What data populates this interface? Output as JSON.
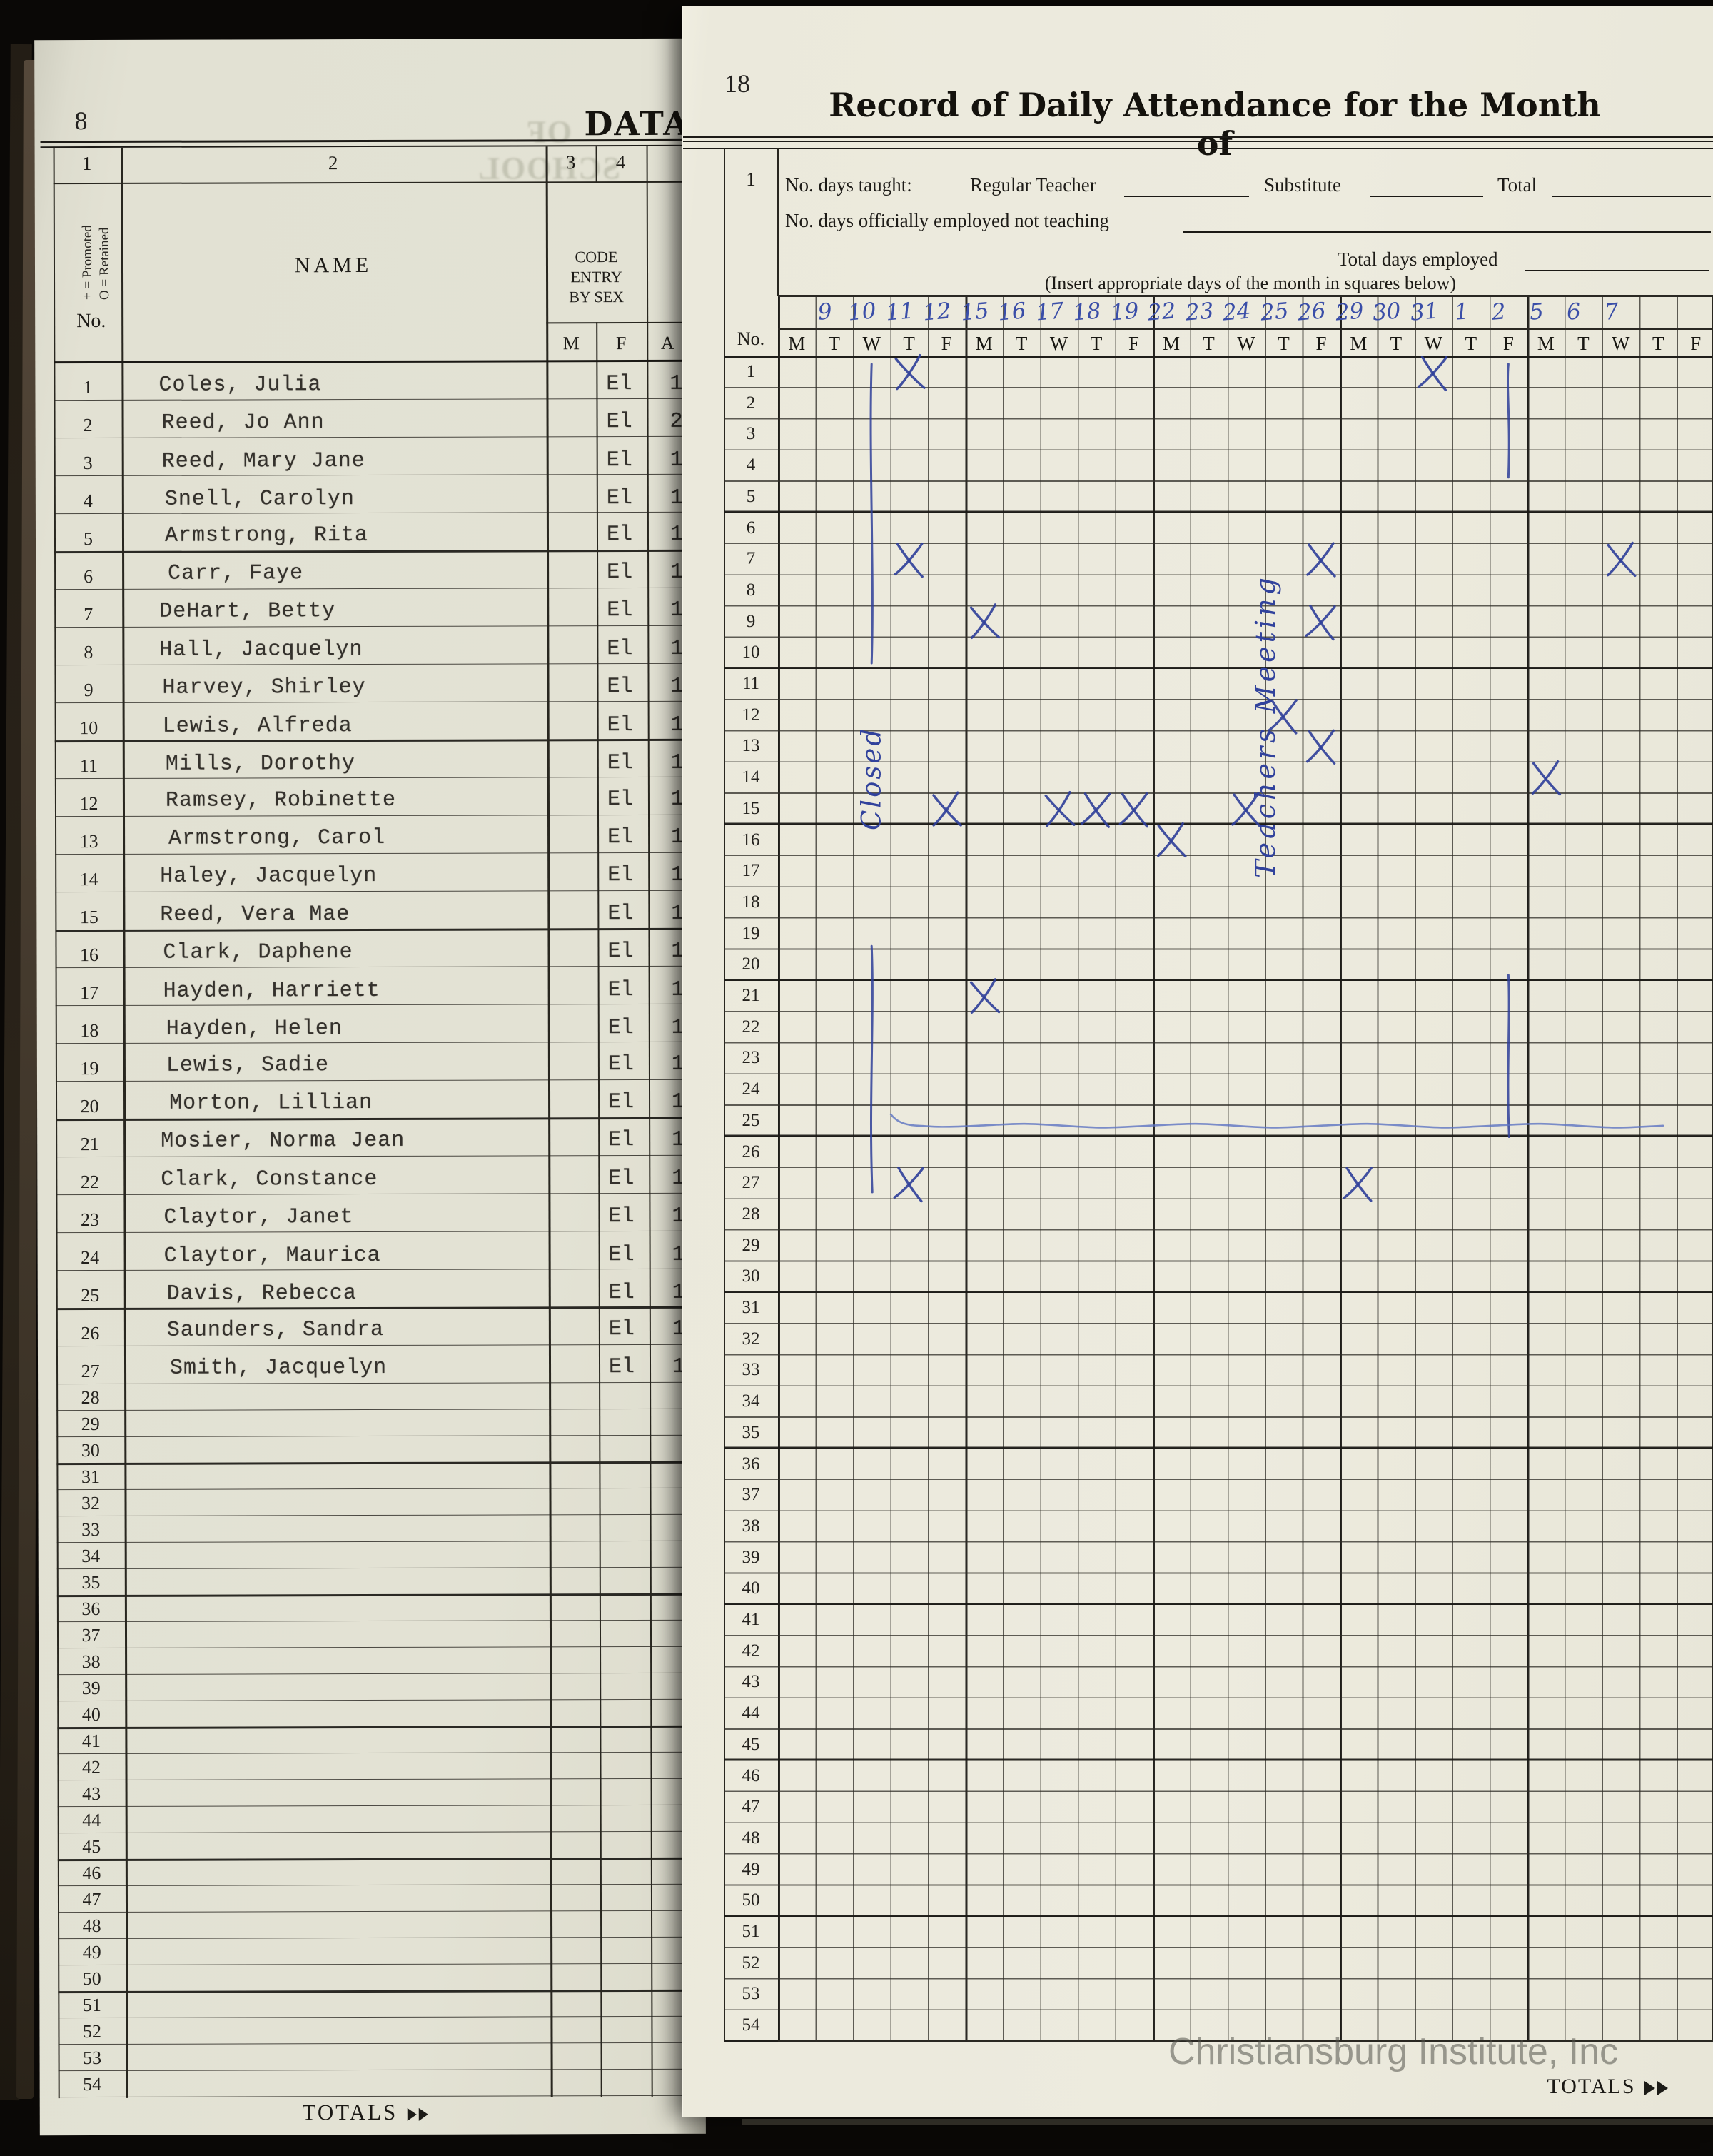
{
  "left_page": {
    "page_number": "8",
    "title_fragment": "DATA",
    "bleed_text": "OF SCHOOL",
    "column_numbers": [
      "1",
      "2",
      "3",
      "4"
    ],
    "legend_line1": "+ = Promoted",
    "legend_line2": "O = Retained",
    "no_label": "No.",
    "name_header": "NAME",
    "code_header_lines": [
      "CODE",
      "ENTRY",
      "BY SEX"
    ],
    "sex_col_m": "M",
    "sex_col_f": "F",
    "age_header_partial": "A",
    "totals_label": "TOTALS",
    "row_count": 54,
    "students": [
      {
        "no": 1,
        "name": "Coles, Julia",
        "code": "El",
        "num": "1"
      },
      {
        "no": 2,
        "name": "Reed, Jo Ann",
        "code": "El",
        "num": "2"
      },
      {
        "no": 3,
        "name": "Reed, Mary Jane",
        "code": "El",
        "num": "1"
      },
      {
        "no": 4,
        "name": "Snell, Carolyn",
        "code": "El",
        "num": "1"
      },
      {
        "no": 5,
        "name": "Armstrong, Rita",
        "code": "El",
        "num": "1"
      },
      {
        "no": 6,
        "name": "Carr, Faye",
        "code": "El",
        "num": "1"
      },
      {
        "no": 7,
        "name": "DeHart, Betty",
        "code": "El",
        "num": "1"
      },
      {
        "no": 8,
        "name": "Hall, Jacquelyn",
        "code": "El",
        "num": "1"
      },
      {
        "no": 9,
        "name": "Harvey, Shirley",
        "code": "El",
        "num": "1"
      },
      {
        "no": 10,
        "name": "Lewis, Alfreda",
        "code": "El",
        "num": "1"
      },
      {
        "no": 11,
        "name": "Mills, Dorothy",
        "code": "El",
        "num": "1"
      },
      {
        "no": 12,
        "name": "Ramsey, Robinette",
        "code": "El",
        "num": "1"
      },
      {
        "no": 13,
        "name": "Armstrong, Carol",
        "code": "El",
        "num": "1"
      },
      {
        "no": 14,
        "name": "Haley, Jacquelyn",
        "code": "El",
        "num": "1"
      },
      {
        "no": 15,
        "name": "Reed, Vera Mae",
        "code": "El",
        "num": "1"
      },
      {
        "no": 16,
        "name": "Clark, Daphene",
        "code": "El",
        "num": "1"
      },
      {
        "no": 17,
        "name": "Hayden, Harriett",
        "code": "El",
        "num": "1"
      },
      {
        "no": 18,
        "name": "Hayden, Helen",
        "code": "El",
        "num": "1"
      },
      {
        "no": 19,
        "name": "Lewis, Sadie",
        "code": "El",
        "num": "1"
      },
      {
        "no": 20,
        "name": "Morton, Lillian",
        "code": "El",
        "num": "1"
      },
      {
        "no": 21,
        "name": "Mosier, Norma Jean",
        "code": "El",
        "num": "1"
      },
      {
        "no": 22,
        "name": "Clark, Constance",
        "code": "El",
        "num": "1"
      },
      {
        "no": 23,
        "name": "Claytor, Janet",
        "code": "El",
        "num": "1"
      },
      {
        "no": 24,
        "name": "Claytor, Maurica",
        "code": "El",
        "num": "1"
      },
      {
        "no": 25,
        "name": "Davis, Rebecca",
        "code": "El",
        "num": "1"
      },
      {
        "no": 26,
        "name": "Saunders, Sandra",
        "code": "El",
        "num": "1"
      },
      {
        "no": 27,
        "name": "Smith, Jacquelyn",
        "code": "El",
        "num": "1"
      }
    ]
  },
  "right_page": {
    "page_number": "18",
    "title": "Record of Daily Attendance for the Month of",
    "header_row_number": "1",
    "days_taught_label": "No. days taught:",
    "regular_teacher_label": "Regular Teacher",
    "substitute_label": "Substitute",
    "total_label": "Total",
    "employed_not_teaching_label": "No. days officially employed not teaching",
    "total_days_employed_label": "Total days employed",
    "insert_note": "(Insert appropriate days of the month in squares below)",
    "no_label": "No.",
    "row_count": 54,
    "day_numbers": [
      "",
      "9",
      "10",
      "11",
      "12",
      "15",
      "16",
      "17",
      "18",
      "19",
      "22",
      "23",
      "24",
      "25",
      "26",
      "29",
      "30",
      "31",
      "1",
      "2",
      "5",
      "6",
      "7",
      "",
      ""
    ],
    "weekdays": [
      "M",
      "T",
      "W",
      "T",
      "F",
      "M",
      "T",
      "W",
      "T",
      "F",
      "M",
      "T",
      "W",
      "T",
      "F",
      "M",
      "T",
      "W",
      "T",
      "F",
      "M",
      "T",
      "W",
      "T",
      "F"
    ],
    "attendance_marks": [
      {
        "row": 1,
        "col": 4
      },
      {
        "row": 1,
        "col": 18
      },
      {
        "row": 7,
        "col": 4
      },
      {
        "row": 7,
        "col": 15
      },
      {
        "row": 7,
        "col": 23
      },
      {
        "row": 9,
        "col": 6
      },
      {
        "row": 9,
        "col": 15
      },
      {
        "row": 12,
        "col": 14
      },
      {
        "row": 13,
        "col": 15
      },
      {
        "row": 14,
        "col": 21
      },
      {
        "row": 15,
        "col": 5
      },
      {
        "row": 15,
        "col": 8
      },
      {
        "row": 15,
        "col": 9
      },
      {
        "row": 15,
        "col": 10
      },
      {
        "row": 15,
        "col": 13
      },
      {
        "row": 16,
        "col": 11
      },
      {
        "row": 21,
        "col": 6
      },
      {
        "row": 27,
        "col": 4
      },
      {
        "row": 27,
        "col": 16
      }
    ],
    "annotations": {
      "closed": {
        "text": "Closed",
        "col": 3,
        "line1_rows": [
          1,
          10
        ],
        "line2_rows": [
          20,
          27
        ]
      },
      "teachers_meeting": {
        "text": "Teachers Meeting",
        "col": 20,
        "line1_rows": [
          1,
          4
        ],
        "line2_rows": [
          21,
          25
        ]
      },
      "wavy_line_row": 25
    },
    "ink_color": "#2e3e99",
    "watermark": "Christiansburg Institute, Inc",
    "totals_label": "TOTALS"
  }
}
